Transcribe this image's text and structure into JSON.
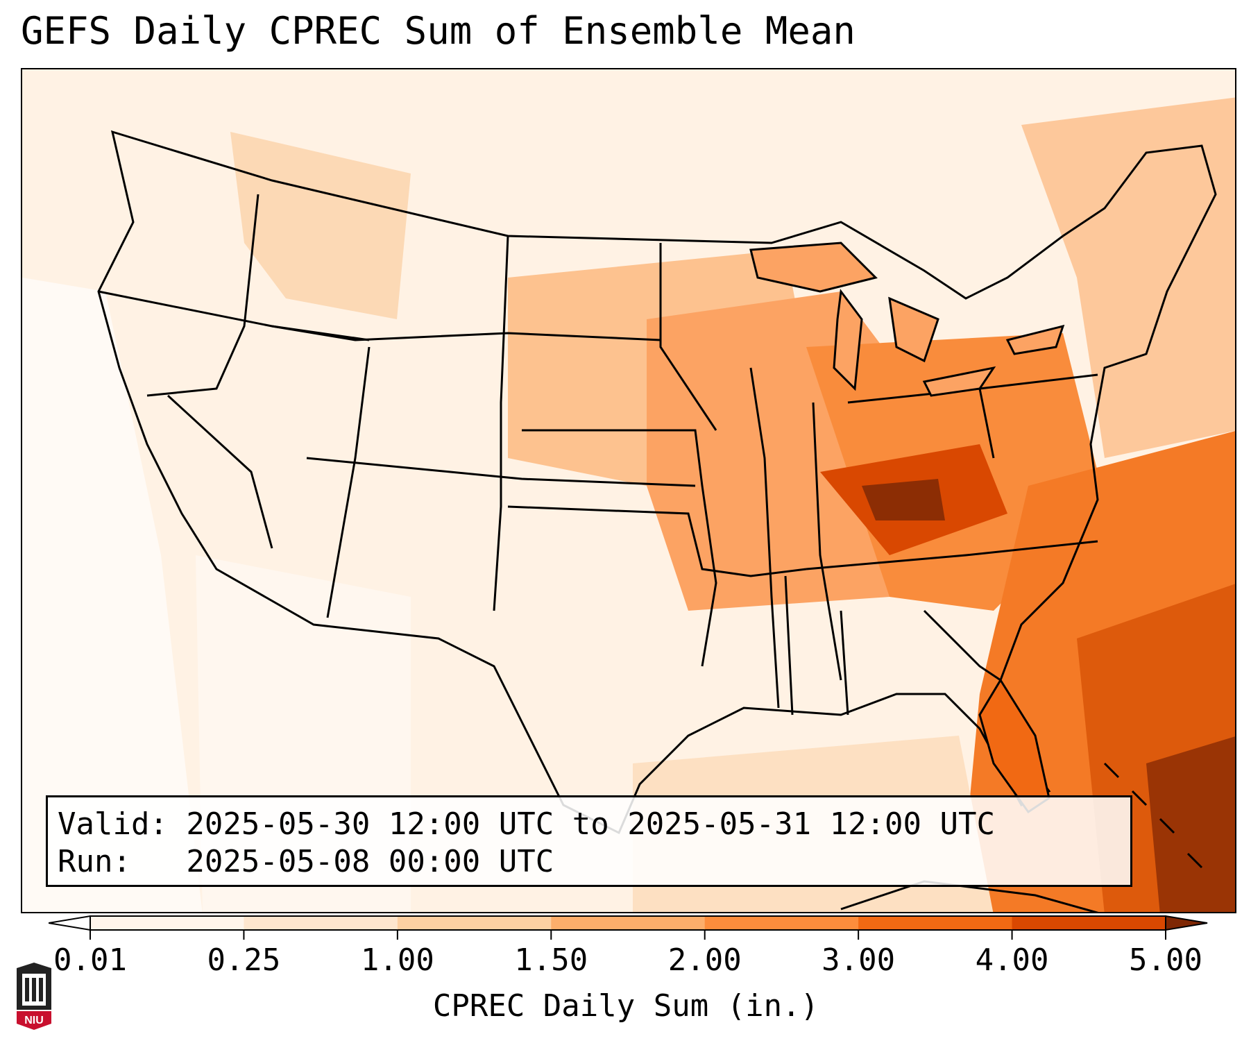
{
  "title": "GEFS Daily CPREC Sum of Ensemble Mean",
  "info": {
    "valid_line": "Valid: 2025-05-30 12:00 UTC to 2025-05-31 12:00 UTC",
    "run_line": "Run:   2025-05-08 00:00 UTC"
  },
  "colorbar": {
    "label": "CPREC Daily Sum (in.)",
    "ticks": [
      "0.01",
      "0.25",
      "1.00",
      "1.50",
      "2.00",
      "3.00",
      "4.00",
      "5.00"
    ],
    "colors": [
      "#fff5eb",
      "#fee6ce",
      "#fdd0a2",
      "#fdae6b",
      "#fd8d3c",
      "#f16913",
      "#d94801",
      "#8c2d04"
    ],
    "over_color": "#7f2704",
    "under_color": "#ffffff"
  },
  "logo": {
    "text": "NIU",
    "colors": {
      "red": "#c8102e",
      "dark": "#222222"
    }
  },
  "map": {
    "projection": "Lambert Conformal (CONUS)",
    "region": "Contiguous United States"
  }
}
